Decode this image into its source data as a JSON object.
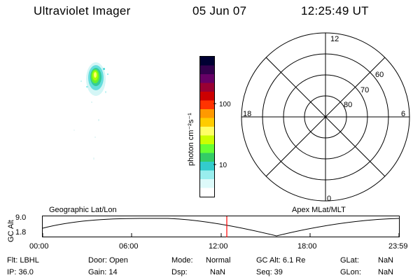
{
  "header": {
    "title": "Ultraviolet Imager",
    "date": "05 Jun 07",
    "time": "12:25:49 UT"
  },
  "colorbar": {
    "label": "photon cm⁻²s⁻¹",
    "tick_labels": [
      "100",
      "10"
    ],
    "colors": [
      "#000033",
      "#33004d",
      "#660066",
      "#990033",
      "#cc0000",
      "#ff3300",
      "#ff9900",
      "#ffcc00",
      "#ffff66",
      "#ccff00",
      "#66ff33",
      "#33cc66",
      "#33cccc",
      "#99eeee",
      "#ddfafa",
      "#ffffff"
    ]
  },
  "polar_plot": {
    "mlt_labels": {
      "top": "12",
      "left": "18",
      "right": "6",
      "bottom": "0"
    },
    "lat_labels": [
      "60",
      "70",
      "80"
    ]
  },
  "timeline": {
    "left_title": "Geographic Lat/Lon",
    "right_title": "Apex MLat/MLT",
    "y_axis_label": "GC Alt",
    "y_ticks": [
      "9.0",
      "1.8"
    ],
    "x_ticks": [
      "00:00",
      "06:00",
      "12:00",
      "18:00",
      "23:59"
    ],
    "current_time_marker": "12:25:49",
    "marker_color": "#ff0000"
  },
  "info": {
    "filter": "Flt: LBHL",
    "ip": "IP: 36.0",
    "door": "Door: Open",
    "gain": "Gain: 14",
    "mode_label": "Mode:",
    "mode_value": "Normal",
    "dsp_label": "Dsp:",
    "dsp_value": "NaN",
    "gc_alt": "GC Alt: 6.1 Re",
    "seq": "Seq: 39",
    "glat_label": "GLat:",
    "glat_value": "NaN",
    "glon_label": "GLon:",
    "glon_value": "NaN"
  }
}
